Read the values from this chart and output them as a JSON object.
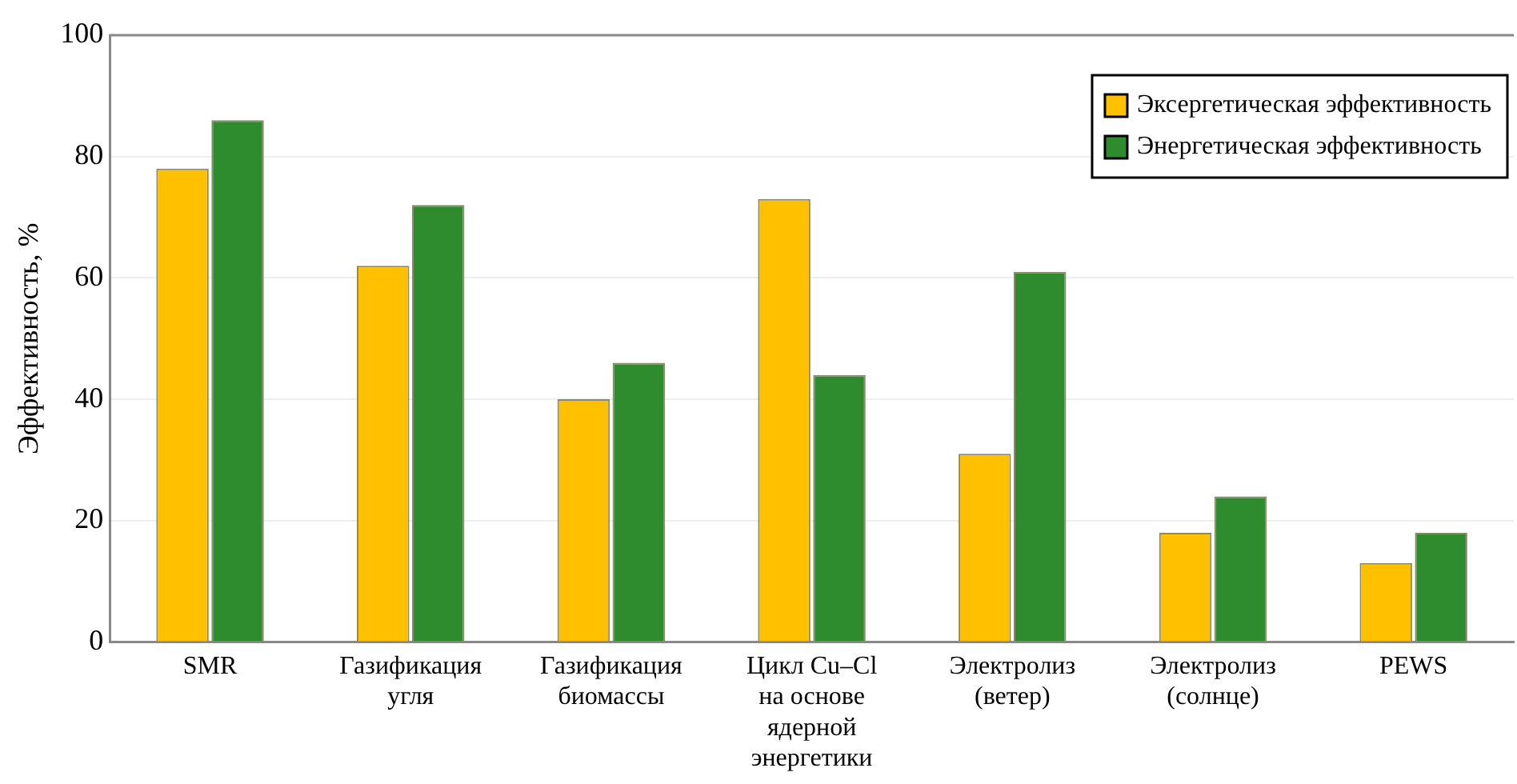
{
  "chart_data": {
    "type": "bar",
    "ylabel": "Эффективность, %",
    "categories": [
      "SMR",
      "Газификация\nугля",
      "Газификация\nбиомассы",
      "Цикл Cu–Cl\nна основе\nядерной\nэнергетики",
      "Электролиз\n(ветер)",
      "Электролиз\n(солнце)",
      "PEWS"
    ],
    "series": [
      {
        "name": "Эксергетическая эффективность",
        "color": "#ffc000",
        "values": [
          78,
          62,
          40,
          73,
          31,
          18,
          13
        ]
      },
      {
        "name": "Энергетическая эффективность",
        "color": "#2e8b2e",
        "values": [
          86,
          72,
          46,
          44,
          61,
          24,
          18
        ]
      }
    ],
    "ylim": [
      0,
      100
    ],
    "yticks": [
      0,
      20,
      40,
      60,
      80,
      100
    ],
    "grid": "y",
    "legend": "top right"
  }
}
